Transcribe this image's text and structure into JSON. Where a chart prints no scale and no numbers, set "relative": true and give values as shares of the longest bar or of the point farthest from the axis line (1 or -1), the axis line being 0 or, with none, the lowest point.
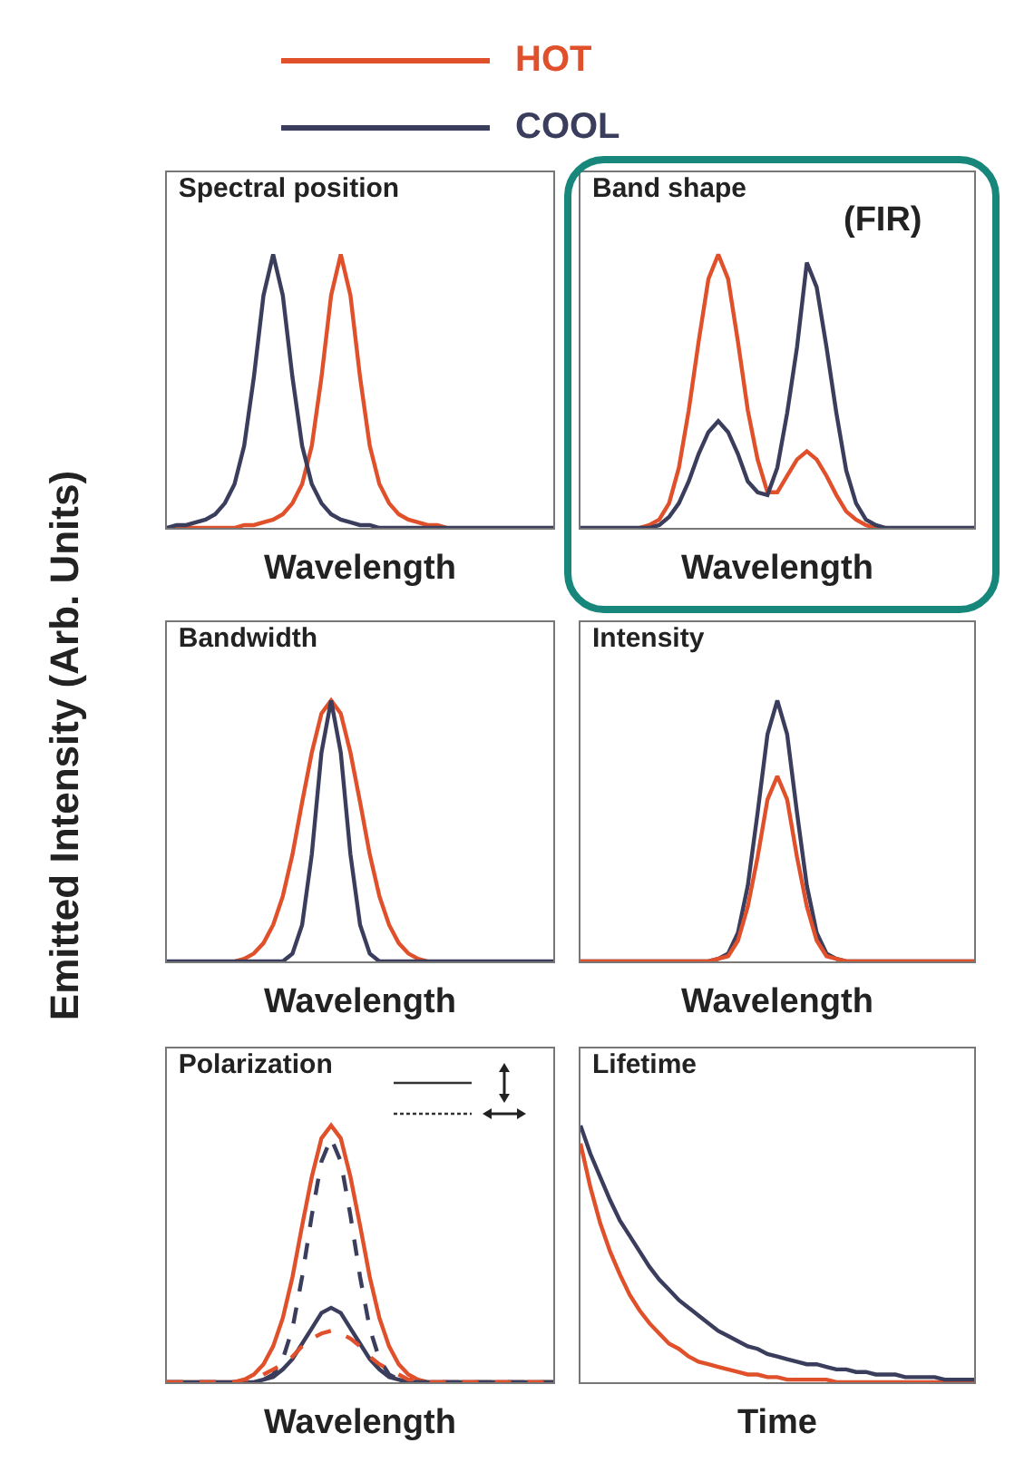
{
  "chart_data": [
    {
      "type": "line",
      "title": "Spectral position",
      "xlabel": "Wavelength",
      "relative": true,
      "legend": "top",
      "tick_labels": false,
      "categories": [
        null,
        null,
        null,
        null,
        null,
        null,
        null,
        null,
        null,
        null,
        null,
        null,
        null,
        null,
        null,
        null,
        null,
        null,
        null,
        null,
        null,
        null,
        null,
        null,
        null,
        null,
        null,
        null,
        null,
        null,
        null,
        null,
        null,
        null,
        null,
        null,
        null,
        null,
        null,
        null,
        null
      ],
      "series": [
        {
          "name": "HOT",
          "color": "#e0502a",
          "values": [
            0,
            0,
            0,
            0,
            0,
            0,
            0,
            0,
            0.01,
            0.01,
            0.02,
            0.03,
            0.05,
            0.09,
            0.16,
            0.3,
            0.55,
            0.85,
            1,
            0.85,
            0.55,
            0.3,
            0.16,
            0.09,
            0.05,
            0.03,
            0.02,
            0.01,
            0.01,
            0,
            null,
            null,
            null,
            null,
            null,
            null,
            null,
            null,
            null,
            null,
            null
          ]
        },
        {
          "name": "COOL",
          "color": "#3a3d5c",
          "values": [
            0,
            0.01,
            0.01,
            0.02,
            0.03,
            0.05,
            0.09,
            0.16,
            0.3,
            0.55,
            0.85,
            1,
            0.85,
            0.55,
            0.3,
            0.16,
            0.09,
            0.05,
            0.03,
            0.02,
            0.01,
            0.01,
            0,
            0,
            0,
            0,
            0,
            0,
            0,
            0,
            0,
            0,
            0,
            0,
            0,
            0,
            0,
            0,
            0,
            0,
            0
          ]
        }
      ]
    },
    {
      "type": "line",
      "title": "Band shape",
      "xlabel": "Wavelength",
      "relative": true,
      "tick_labels": false,
      "annotations": [
        "(FIR)"
      ],
      "categories": [
        null,
        null,
        null,
        null,
        null,
        null,
        null,
        null,
        null,
        null,
        null,
        null,
        null,
        null,
        null,
        null,
        null,
        null,
        null,
        null,
        null,
        null,
        null,
        null,
        null,
        null,
        null,
        null,
        null,
        null,
        null,
        null,
        null,
        null,
        null,
        null,
        null,
        null,
        null,
        null,
        null
      ],
      "series": [
        {
          "color": "#e0502a",
          "values": [
            null,
            null,
            null,
            null,
            null,
            null,
            0,
            0.01,
            0.03,
            0.09,
            0.22,
            0.43,
            0.68,
            0.91,
            1,
            0.91,
            0.68,
            0.43,
            0.25,
            0.13,
            0.13,
            0.19,
            0.25,
            0.28,
            0.25,
            0.19,
            0.12,
            0.06,
            0.03,
            0.01,
            0,
            0,
            null,
            null,
            null,
            null,
            null,
            null,
            null,
            null,
            null
          ]
        },
        {
          "color": "#3a3d5c",
          "values": [
            0,
            0,
            0,
            0,
            0,
            0,
            0,
            0,
            0.01,
            0.04,
            0.09,
            0.17,
            0.27,
            0.35,
            0.39,
            0.35,
            0.27,
            0.17,
            0.13,
            0.12,
            0.22,
            0.42,
            0.66,
            0.97,
            0.88,
            0.66,
            0.42,
            0.21,
            0.09,
            0.03,
            0.01,
            0,
            0,
            0,
            0,
            0,
            0,
            0,
            0,
            0,
            0
          ]
        }
      ]
    },
    {
      "type": "line",
      "title": "Bandwidth",
      "xlabel": "Wavelength",
      "ylabel": "Emitted Intensity (Arb. Units)",
      "relative": true,
      "tick_labels": false,
      "categories": [
        null,
        null,
        null,
        null,
        null,
        null,
        null,
        null,
        null,
        null,
        null,
        null,
        null,
        null,
        null,
        null,
        null,
        null,
        null,
        null,
        null,
        null,
        null,
        null,
        null,
        null,
        null,
        null,
        null,
        null,
        null,
        null,
        null,
        null,
        null,
        null,
        null,
        null,
        null,
        null,
        null
      ],
      "series": [
        {
          "color": "#e0502a",
          "values": [
            null,
            null,
            null,
            null,
            null,
            null,
            null,
            0,
            0.01,
            0.03,
            0.07,
            0.14,
            0.25,
            0.41,
            0.61,
            0.8,
            0.95,
            1,
            0.95,
            0.8,
            0.61,
            0.41,
            0.25,
            0.14,
            0.07,
            0.03,
            0.01,
            0,
            null,
            null,
            null,
            null,
            null,
            null,
            null,
            null,
            null,
            null,
            null,
            null,
            null
          ]
        },
        {
          "color": "#3a3d5c",
          "values": [
            0,
            0,
            0,
            0,
            0,
            0,
            0,
            0,
            0,
            0,
            0,
            0,
            0,
            0.03,
            0.14,
            0.41,
            0.8,
            1,
            0.8,
            0.41,
            0.14,
            0.03,
            0,
            0,
            0,
            0,
            0,
            0,
            0,
            0,
            0,
            0,
            0,
            0,
            0,
            0,
            0,
            0,
            0,
            0,
            0
          ]
        }
      ]
    },
    {
      "type": "line",
      "title": "Intensity",
      "xlabel": "Wavelength",
      "relative": true,
      "tick_labels": false,
      "categories": [
        null,
        null,
        null,
        null,
        null,
        null,
        null,
        null,
        null,
        null,
        null,
        null,
        null,
        null,
        null,
        null,
        null,
        null,
        null,
        null,
        null,
        null,
        null,
        null,
        null,
        null,
        null,
        null,
        null,
        null,
        null,
        null,
        null,
        null,
        null,
        null,
        null,
        null,
        null,
        null,
        null
      ],
      "series": [
        {
          "color": "#3a3d5c",
          "values": [
            0,
            0,
            0,
            0,
            0,
            0,
            0,
            0,
            0,
            0,
            0,
            0,
            0,
            0,
            0.01,
            0.03,
            0.11,
            0.29,
            0.57,
            0.87,
            1,
            0.87,
            0.57,
            0.29,
            0.11,
            0.03,
            0.01,
            0,
            0,
            0,
            0,
            0,
            0,
            0,
            0,
            0,
            0,
            0,
            0,
            0,
            0
          ]
        },
        {
          "color": "#e0502a",
          "values": [
            0,
            0,
            0,
            0,
            0,
            0,
            0,
            0,
            0,
            0,
            0,
            0,
            0,
            0,
            0.01,
            0.02,
            0.08,
            0.21,
            0.4,
            0.62,
            0.71,
            0.62,
            0.4,
            0.21,
            0.08,
            0.02,
            0.01,
            0,
            0,
            0,
            0,
            0,
            0,
            0,
            0,
            0,
            0,
            0,
            0,
            0,
            0
          ]
        }
      ]
    },
    {
      "type": "line",
      "title": "Polarization",
      "xlabel": "Wavelength",
      "relative": true,
      "tick_labels": false,
      "categories": [
        null,
        null,
        null,
        null,
        null,
        null,
        null,
        null,
        null,
        null,
        null,
        null,
        null,
        null,
        null,
        null,
        null,
        null,
        null,
        null,
        null,
        null,
        null,
        null,
        null,
        null,
        null,
        null,
        null,
        null,
        null,
        null,
        null,
        null,
        null,
        null,
        null,
        null,
        null,
        null,
        null
      ],
      "series": [
        {
          "color": "#e0502a",
          "line_style": "solid",
          "values": [
            0,
            0,
            0,
            0,
            0,
            0,
            0,
            0,
            0.01,
            0.03,
            0.07,
            0.14,
            0.25,
            0.41,
            0.61,
            0.8,
            0.95,
            1,
            0.95,
            0.8,
            0.61,
            0.41,
            0.25,
            0.14,
            0.07,
            0.03,
            0.01,
            0,
            0,
            0,
            0,
            0,
            0,
            0,
            0,
            0,
            0,
            0,
            0,
            0,
            0
          ]
        },
        {
          "color": "#3a3d5c",
          "line_style": "dashed",
          "values": [
            0,
            0,
            0,
            0,
            0,
            0,
            0,
            0,
            0,
            0,
            0.01,
            0.03,
            0.09,
            0.21,
            0.41,
            0.65,
            0.86,
            0.95,
            0.86,
            0.65,
            0.41,
            0.21,
            0.09,
            0.03,
            0.01,
            0,
            0,
            0,
            0,
            0,
            0,
            0,
            0,
            0,
            0,
            0,
            0,
            0,
            0,
            0,
            0
          ]
        },
        {
          "color": "#3a3d5c",
          "line_style": "solid",
          "values": [
            0,
            0,
            0,
            0,
            0,
            0,
            0,
            0,
            0,
            0,
            0.01,
            0.02,
            0.05,
            0.09,
            0.15,
            0.21,
            0.27,
            0.29,
            0.27,
            0.21,
            0.15,
            0.09,
            0.05,
            0.02,
            0.01,
            0,
            0,
            0,
            0,
            0,
            0,
            0,
            0,
            0,
            0,
            0,
            0,
            0,
            0,
            0,
            0
          ]
        },
        {
          "color": "#e0502a",
          "line_style": "dashed",
          "values": [
            0,
            0,
            0,
            0,
            0,
            0,
            0,
            0,
            0.01,
            0.01,
            0.03,
            0.05,
            0.07,
            0.1,
            0.14,
            0.17,
            0.19,
            0.2,
            0.19,
            0.17,
            0.14,
            0.1,
            0.07,
            0.05,
            0.03,
            0.01,
            0.01,
            0,
            0,
            0,
            0,
            0,
            0,
            0,
            0,
            0,
            0,
            0,
            0,
            0,
            0
          ]
        }
      ]
    },
    {
      "type": "line",
      "title": "Lifetime",
      "xlabel": "Time",
      "relative": true,
      "tick_labels": false,
      "categories": [
        null,
        null,
        null,
        null,
        null,
        null,
        null,
        null,
        null,
        null,
        null,
        null,
        null,
        null,
        null,
        null,
        null,
        null,
        null,
        null,
        null,
        null,
        null,
        null,
        null,
        null,
        null,
        null,
        null,
        null,
        null,
        null,
        null,
        null,
        null,
        null,
        null,
        null,
        null,
        null,
        null
      ],
      "series": [
        {
          "color": "#e0502a",
          "values": [
            0.93,
            0.76,
            0.62,
            0.51,
            0.42,
            0.34,
            0.28,
            0.23,
            0.19,
            0.15,
            0.13,
            0.1,
            0.08,
            0.07,
            0.06,
            0.05,
            0.04,
            0.03,
            0.03,
            0.02,
            0.02,
            0.01,
            0.01,
            0.01,
            0.01,
            0.01,
            0,
            0,
            0,
            0,
            0,
            0,
            0,
            0,
            0,
            0,
            0,
            0,
            0,
            0,
            0
          ]
        },
        {
          "color": "#3a3d5c",
          "values": [
            1,
            0.89,
            0.8,
            0.71,
            0.63,
            0.57,
            0.51,
            0.45,
            0.4,
            0.36,
            0.32,
            0.29,
            0.26,
            0.23,
            0.2,
            0.18,
            0.16,
            0.14,
            0.13,
            0.11,
            0.1,
            0.09,
            0.08,
            0.07,
            0.07,
            0.06,
            0.05,
            0.05,
            0.04,
            0.04,
            0.03,
            0.03,
            0.03,
            0.02,
            0.02,
            0.02,
            0.02,
            0.01,
            0.01,
            0.01,
            0.01
          ]
        }
      ]
    }
  ]
}
